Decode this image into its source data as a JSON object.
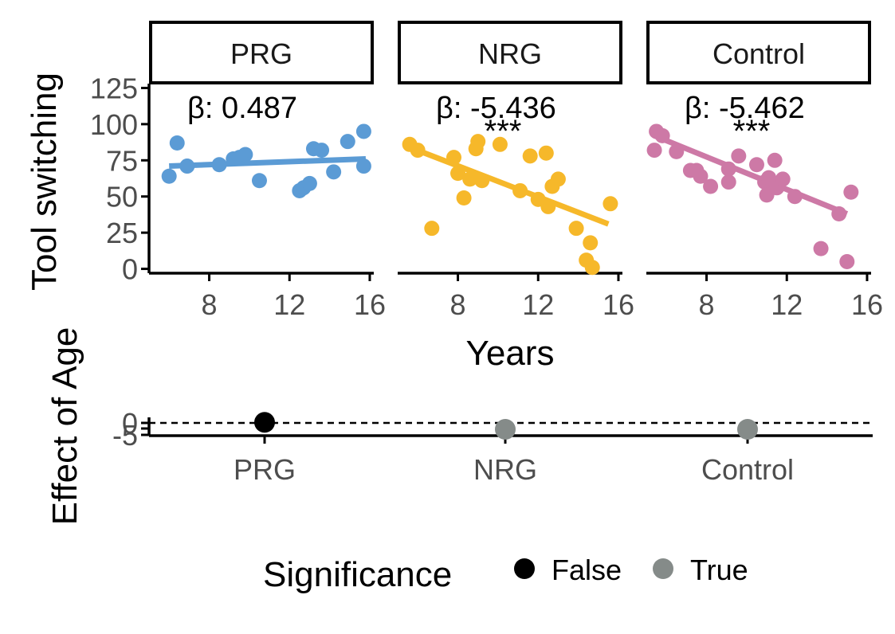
{
  "chart_data": [
    {
      "type": "scatter",
      "facets": [
        "PRG",
        "NRG",
        "Control"
      ],
      "xlabel": "Years",
      "ylabel": "Tool switching",
      "xticks": [
        8,
        12,
        16
      ],
      "yticks": [
        0,
        25,
        50,
        75,
        100,
        125
      ],
      "xlim": [
        5,
        16.2
      ],
      "ylim": [
        -3,
        128
      ],
      "grid": false,
      "panels": [
        {
          "facet": "PRG",
          "color": "#5b9bd5",
          "beta_label": "β: 0.487",
          "stars": "",
          "points": [
            {
              "x": 6.0,
              "y": 64
            },
            {
              "x": 6.4,
              "y": 87
            },
            {
              "x": 6.9,
              "y": 71
            },
            {
              "x": 8.5,
              "y": 72
            },
            {
              "x": 9.2,
              "y": 76
            },
            {
              "x": 9.5,
              "y": 77
            },
            {
              "x": 9.8,
              "y": 79
            },
            {
              "x": 10.5,
              "y": 61
            },
            {
              "x": 12.5,
              "y": 54
            },
            {
              "x": 12.7,
              "y": 56
            },
            {
              "x": 13.0,
              "y": 59
            },
            {
              "x": 13.2,
              "y": 83
            },
            {
              "x": 13.6,
              "y": 82
            },
            {
              "x": 14.2,
              "y": 67
            },
            {
              "x": 14.9,
              "y": 88
            },
            {
              "x": 15.7,
              "y": 95
            },
            {
              "x": 15.7,
              "y": 71
            }
          ],
          "fit": {
            "x": [
              6.0,
              15.8
            ],
            "y": [
              71,
              76
            ]
          }
        },
        {
          "facet": "NRG",
          "color": "#f6b82a",
          "beta_label": "β: -5.436",
          "stars": "***",
          "points": [
            {
              "x": 5.6,
              "y": 86
            },
            {
              "x": 6.0,
              "y": 82
            },
            {
              "x": 6.7,
              "y": 28
            },
            {
              "x": 7.8,
              "y": 77
            },
            {
              "x": 8.0,
              "y": 66
            },
            {
              "x": 8.3,
              "y": 49
            },
            {
              "x": 8.6,
              "y": 62
            },
            {
              "x": 8.9,
              "y": 83
            },
            {
              "x": 9.0,
              "y": 88
            },
            {
              "x": 9.2,
              "y": 61
            },
            {
              "x": 10.1,
              "y": 86
            },
            {
              "x": 11.1,
              "y": 54
            },
            {
              "x": 11.6,
              "y": 78
            },
            {
              "x": 12.0,
              "y": 48
            },
            {
              "x": 12.4,
              "y": 80
            },
            {
              "x": 12.5,
              "y": 43
            },
            {
              "x": 12.7,
              "y": 57
            },
            {
              "x": 13.0,
              "y": 62
            },
            {
              "x": 13.9,
              "y": 28
            },
            {
              "x": 14.4,
              "y": 6
            },
            {
              "x": 14.6,
              "y": 18
            },
            {
              "x": 14.7,
              "y": 1
            },
            {
              "x": 15.6,
              "y": 45
            }
          ],
          "fit": {
            "x": [
              5.6,
              15.5
            ],
            "y": [
              84,
              31
            ]
          }
        },
        {
          "facet": "Control",
          "color": "#cd79a6",
          "beta_label": "β: -5.462",
          "stars": "***",
          "points": [
            {
              "x": 5.4,
              "y": 82
            },
            {
              "x": 5.5,
              "y": 95
            },
            {
              "x": 5.8,
              "y": 92
            },
            {
              "x": 6.5,
              "y": 81
            },
            {
              "x": 7.2,
              "y": 68
            },
            {
              "x": 7.5,
              "y": 68
            },
            {
              "x": 7.7,
              "y": 64
            },
            {
              "x": 8.2,
              "y": 57
            },
            {
              "x": 9.1,
              "y": 60
            },
            {
              "x": 9.1,
              "y": 69
            },
            {
              "x": 9.6,
              "y": 78
            },
            {
              "x": 10.5,
              "y": 72
            },
            {
              "x": 10.9,
              "y": 60
            },
            {
              "x": 11.0,
              "y": 51
            },
            {
              "x": 11.1,
              "y": 63
            },
            {
              "x": 11.4,
              "y": 75
            },
            {
              "x": 11.5,
              "y": 56
            },
            {
              "x": 11.8,
              "y": 62
            },
            {
              "x": 12.4,
              "y": 50
            },
            {
              "x": 13.7,
              "y": 14
            },
            {
              "x": 14.6,
              "y": 38
            },
            {
              "x": 15.0,
              "y": 5
            },
            {
              "x": 15.2,
              "y": 53
            }
          ],
          "fit": {
            "x": [
              5.4,
              15.0
            ],
            "y": [
              92,
              38
            ]
          }
        }
      ]
    },
    {
      "type": "scatter",
      "categories": [
        "PRG",
        "NRG",
        "Control"
      ],
      "values": [
        0.487,
        -5.436,
        -5.462
      ],
      "significance": [
        "False",
        "True",
        "True"
      ],
      "ylabel": "Effect of Age",
      "ytick_labels": [
        "-5",
        "0"
      ],
      "reference_line": 0,
      "legend": {
        "title": "Significance",
        "position": "bottom",
        "entries": [
          {
            "label": "False",
            "color": "#000000"
          },
          {
            "label": "True",
            "color": "#858b89"
          }
        ]
      }
    }
  ]
}
